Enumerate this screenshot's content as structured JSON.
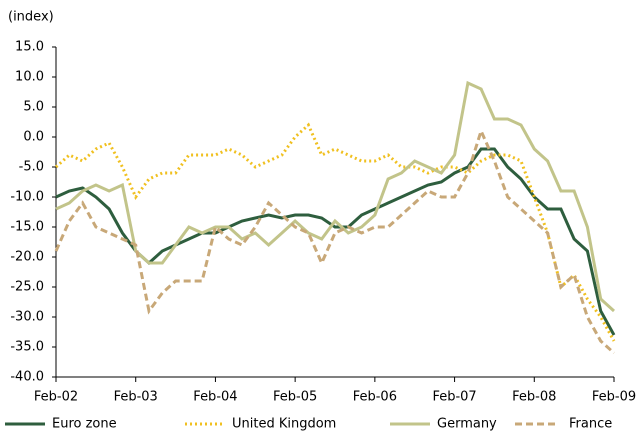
{
  "chart_data": {
    "type": "line",
    "y_label": "(index)",
    "categories": [
      "Feb-02",
      null,
      null,
      null,
      null,
      null,
      "Feb-03",
      null,
      null,
      null,
      null,
      null,
      "Feb-04",
      null,
      null,
      null,
      null,
      null,
      "Feb-05",
      null,
      null,
      null,
      null,
      null,
      "Feb-06",
      null,
      null,
      null,
      null,
      null,
      "Feb-07",
      null,
      null,
      null,
      null,
      null,
      "Feb-08",
      null,
      null,
      null,
      null,
      null,
      "Feb-09"
    ],
    "series": [
      {
        "name": "Euro zone",
        "color": "#2e5e3e",
        "dash": "solid",
        "values": [
          -10,
          -9,
          -8.5,
          -10,
          -12,
          -16,
          -19,
          -21,
          -19,
          -18,
          -17,
          -16,
          -16,
          -15,
          -14,
          -13.5,
          -13,
          -13.5,
          -13,
          -13,
          -13.5,
          -15,
          -15,
          -13,
          -12,
          -11,
          -10,
          -9,
          -8,
          -7.5,
          -6,
          -5,
          -2,
          -2,
          -5,
          -7,
          -10,
          -12,
          -12,
          -17,
          -19,
          -29,
          -33
        ]
      },
      {
        "name": "United Kingdom",
        "color": "#f0c020",
        "dash": "dotted",
        "values": [
          -5,
          -3,
          -4,
          -2,
          -1,
          -5,
          -10,
          -7,
          -6,
          -6,
          -3,
          -3,
          -3,
          -2,
          -3,
          -5,
          -4,
          -3,
          0,
          2,
          -3,
          -2,
          -3,
          -4,
          -4,
          -3,
          -5,
          -5,
          -6,
          -5,
          -5,
          -6,
          -4,
          -3,
          -3,
          -4,
          -10,
          -16,
          -25,
          -23,
          -27,
          -30,
          -34
        ]
      },
      {
        "name": "Germany",
        "color": "#c2c48a",
        "dash": "solid",
        "values": [
          -12,
          -11,
          -9,
          -8,
          -9,
          -8,
          -19,
          -21,
          -21,
          -18,
          -15,
          -16,
          -15,
          -15,
          -17,
          -16,
          -18,
          -16,
          -14,
          -16,
          -17,
          -14,
          -16,
          -15,
          -13,
          -7,
          -6,
          -4,
          -5,
          -6,
          -3,
          9,
          8,
          3,
          3,
          2,
          -2,
          -4,
          -9,
          -9,
          -15,
          -27,
          -29
        ]
      },
      {
        "name": "France",
        "color": "#c8a878",
        "dash": "dashed",
        "values": [
          -19,
          -14,
          -11,
          -15,
          -16,
          -17,
          -18,
          -29,
          -26,
          -24,
          -24,
          -24,
          -15,
          -17,
          -18,
          -15,
          -11,
          -13,
          -15,
          -16,
          -21,
          -16,
          -15,
          -16,
          -15,
          -15,
          -13,
          -11,
          -9,
          -10,
          -10,
          -6,
          1,
          -4,
          -10,
          -12,
          -14,
          -16,
          -25,
          -23,
          -30,
          -34,
          -36
        ]
      }
    ],
    "ylim": [
      -40,
      15
    ],
    "yticks": [
      {
        "value": -40,
        "label": "-40.0"
      },
      {
        "value": -35,
        "label": "-35.0"
      },
      {
        "value": -30,
        "label": "-30.0"
      },
      {
        "value": -25,
        "label": "-25.0"
      },
      {
        "value": -20,
        "label": "-20.0"
      },
      {
        "value": -15,
        "label": "-15.0"
      },
      {
        "value": -10,
        "label": "-10.0"
      },
      {
        "value": -5,
        "label": "-5.0"
      },
      {
        "value": 0,
        "label": "0.0"
      },
      {
        "value": 5,
        "label": "5.0"
      },
      {
        "value": 10,
        "label": "10.0"
      },
      {
        "value": 15,
        "label": "15.0"
      }
    ],
    "grid": false,
    "legend": "bottom"
  }
}
